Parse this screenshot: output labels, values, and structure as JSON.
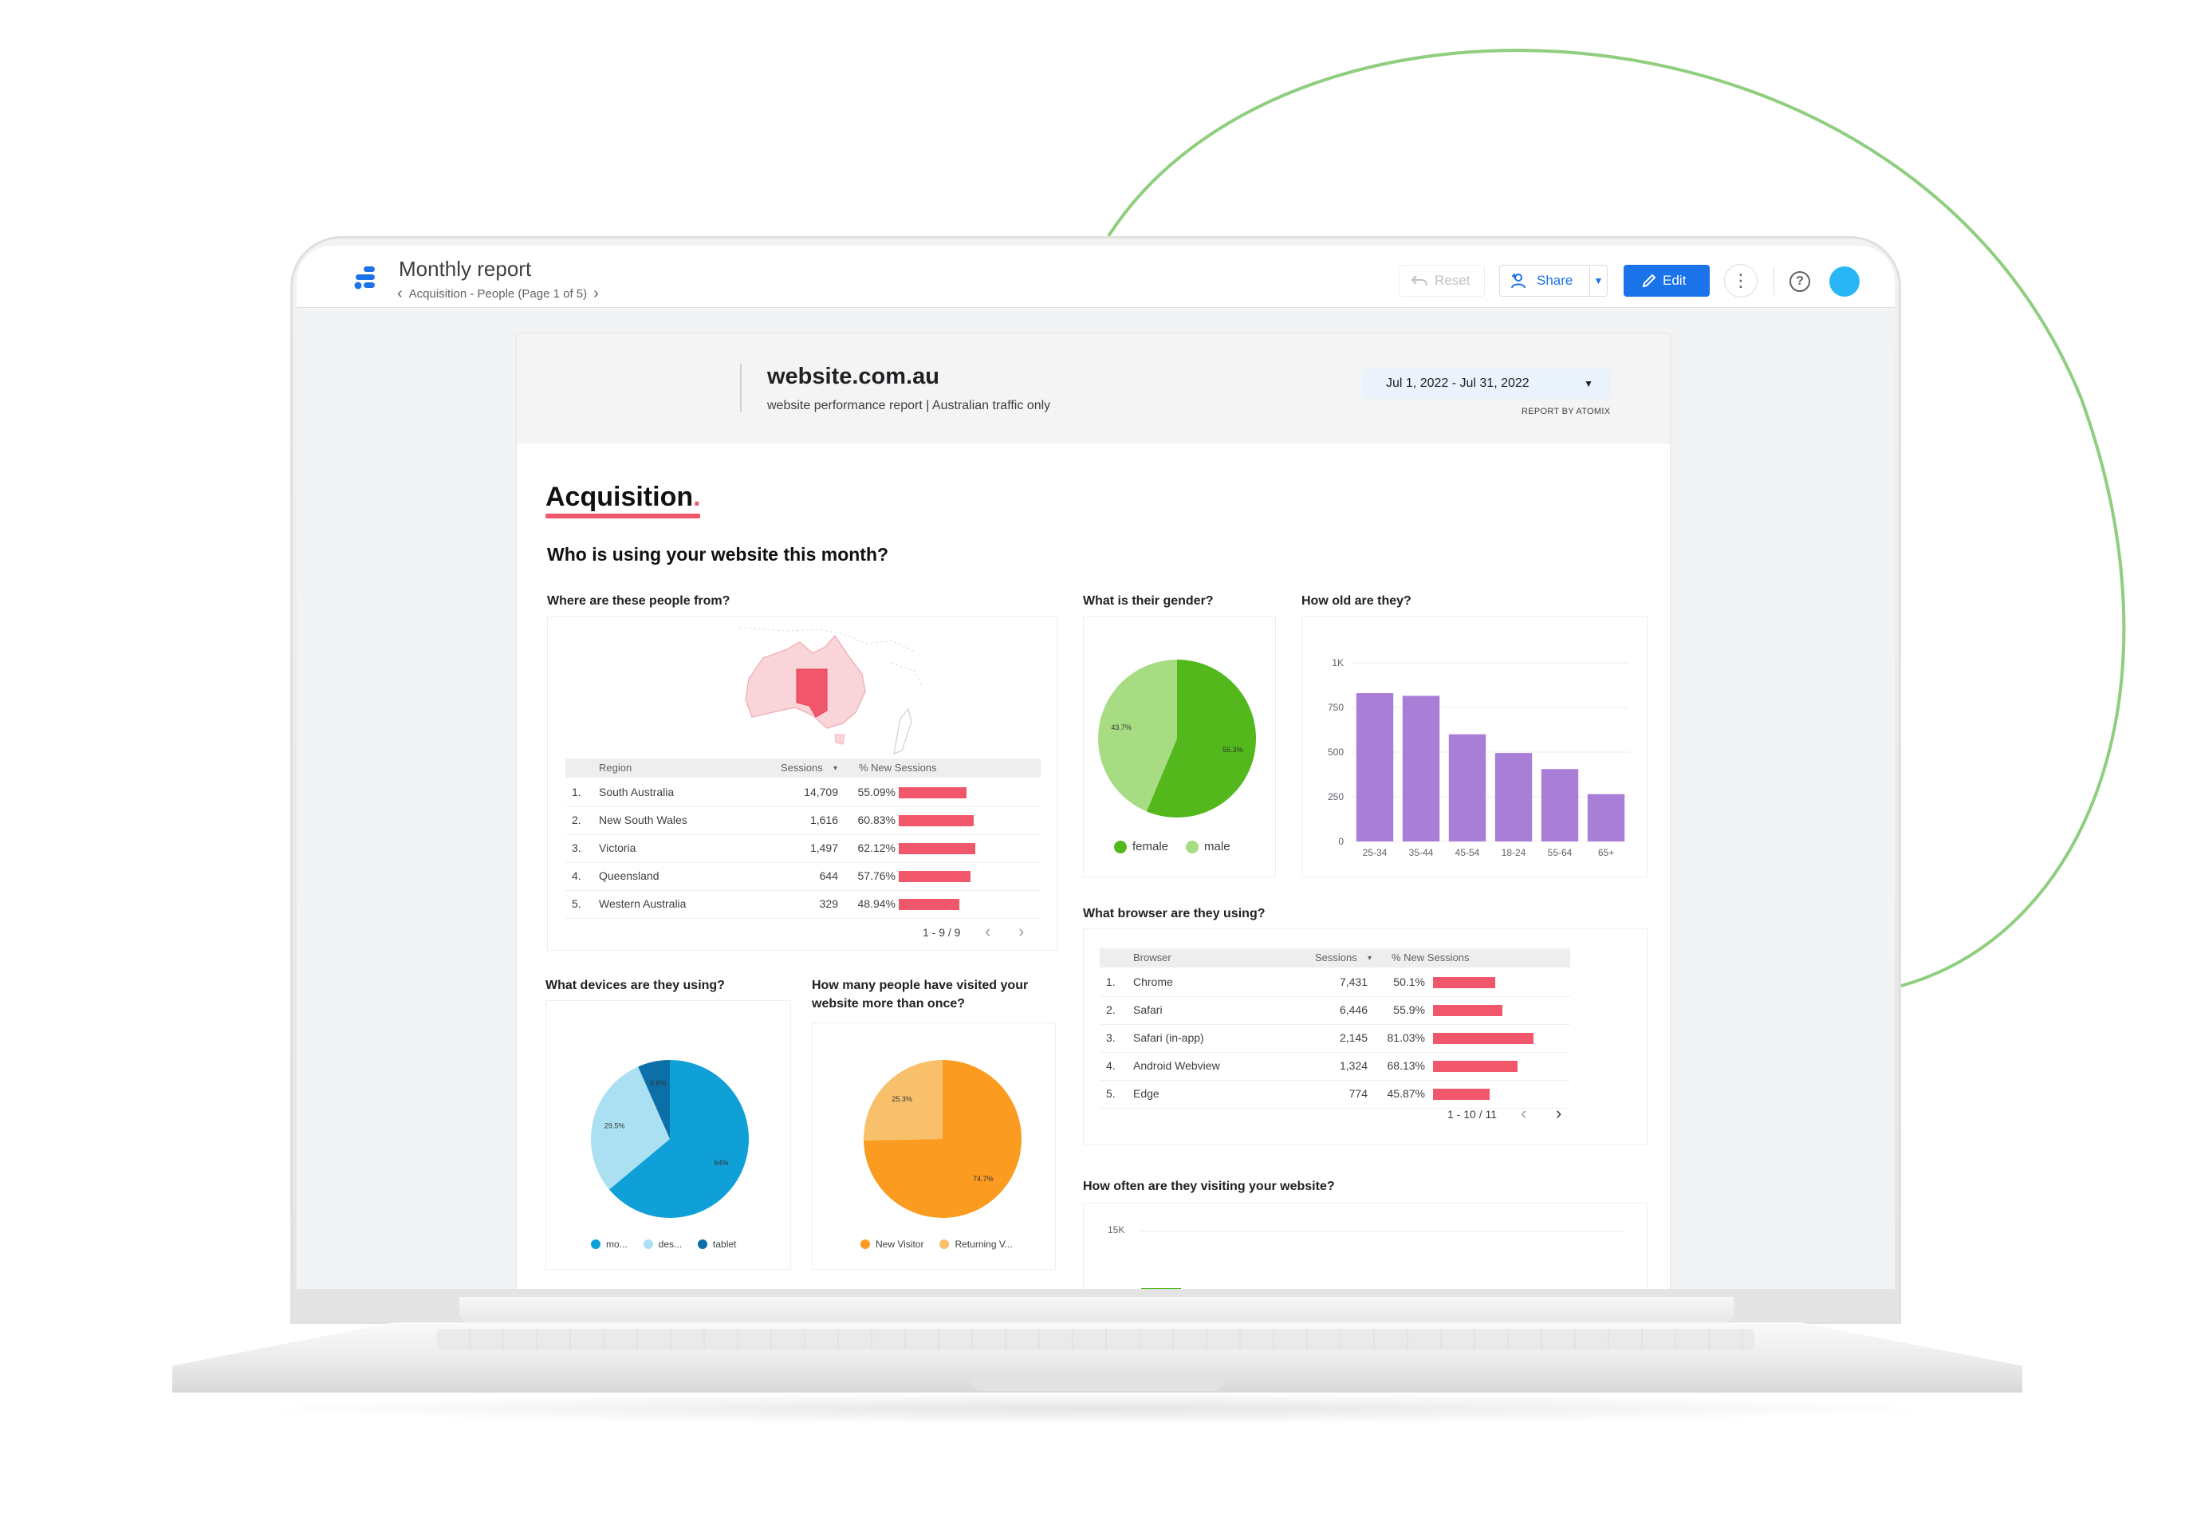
{
  "app": {
    "title": "Monthly report",
    "breadcrumb": "Acquisition - People (Page 1 of 5)",
    "toolbar": {
      "reset": "Reset",
      "share": "Share",
      "edit": "Edit"
    },
    "icons": [
      "report-logo-icon",
      "chevron-left-icon",
      "chevron-right-icon",
      "undo-icon",
      "add-person-icon",
      "caret-down-icon",
      "pencil-icon",
      "more-vert-icon",
      "help-icon",
      "avatar"
    ]
  },
  "report": {
    "site": "website.com.au",
    "subtitle": "website performance report | Australian traffic only",
    "date_range": "Jul 1, 2022 - Jul 31, 2022",
    "byline": "REPORT BY ATOMIX",
    "section": "Acquisition",
    "section_dot": ".",
    "question": "Who is using your website this month?",
    "colors": {
      "accent": "#f0576b",
      "brand_blue": "#1a73e8",
      "purple": "#a97ed6",
      "green_dark": "#52b81c",
      "green_light": "#a8dc82",
      "blue_dark": "#0fa0d8",
      "blue_light": "#abe0f2",
      "blue_navy": "#0c6fa8",
      "orange": "#fb9b20",
      "orange_light": "#f8c06b",
      "arc": "#8fce7f"
    }
  },
  "region": {
    "title": "Where are these people from?",
    "columns": [
      "Region",
      "Sessions",
      "% New Sessions"
    ],
    "sort_indicator": "▾",
    "rows": [
      {
        "n": "1.",
        "name": "South Australia",
        "sessions": "14,709",
        "pct": "55.09%",
        "v": 55.09
      },
      {
        "n": "2.",
        "name": "New South Wales",
        "sessions": "1,616",
        "pct": "60.83%",
        "v": 60.83
      },
      {
        "n": "3.",
        "name": "Victoria",
        "sessions": "1,497",
        "pct": "62.12%",
        "v": 62.12
      },
      {
        "n": "4.",
        "name": "Queensland",
        "sessions": "644",
        "pct": "57.76%",
        "v": 57.76
      },
      {
        "n": "5.",
        "name": "Western Australia",
        "sessions": "329",
        "pct": "48.94%",
        "v": 48.94
      }
    ],
    "pager": "1 - 9 / 9"
  },
  "gender": {
    "title": "What is their gender?",
    "slices": [
      {
        "label": "female",
        "value": 56.3,
        "text": "56.3%",
        "color": "#52b81c"
      },
      {
        "label": "male",
        "value": 43.7,
        "text": "43.7%",
        "color": "#a8dc82"
      }
    ]
  },
  "age": {
    "title": "How old are they?",
    "y_ticks": [
      "1K",
      "750",
      "500",
      "250",
      "0"
    ],
    "y_tick_values": [
      1000,
      750,
      500,
      250,
      0
    ],
    "categories": [
      "25-34",
      "35-44",
      "45-54",
      "18-24",
      "55-64",
      "65+"
    ],
    "values": [
      830,
      815,
      600,
      495,
      405,
      265
    ],
    "ylim": [
      0,
      1000
    ]
  },
  "browser": {
    "title": "What browser are they using?",
    "columns": [
      "Browser",
      "Sessions",
      "% New Sessions"
    ],
    "sort_indicator": "▾",
    "rows": [
      {
        "n": "1.",
        "name": "Chrome",
        "sessions": "7,431",
        "pct": "50.1%",
        "v": 50.1
      },
      {
        "n": "2.",
        "name": "Safari",
        "sessions": "6,446",
        "pct": "55.9%",
        "v": 55.9
      },
      {
        "n": "3.",
        "name": "Safari (in-app)",
        "sessions": "2,145",
        "pct": "81.03%",
        "v": 81.03
      },
      {
        "n": "4.",
        "name": "Android Webview",
        "sessions": "1,324",
        "pct": "68.13%",
        "v": 68.13
      },
      {
        "n": "5.",
        "name": "Edge",
        "sessions": "774",
        "pct": "45.87%",
        "v": 45.87
      }
    ],
    "pager": "1 - 10 / 11"
  },
  "devices": {
    "title": "What devices are they using?",
    "slices": [
      {
        "label": "mo...",
        "value": 64,
        "text": "64%",
        "color": "#0fa0d8"
      },
      {
        "label": "des...",
        "value": 29.5,
        "text": "29.5%",
        "color": "#abe0f2"
      },
      {
        "label": "tablet",
        "value": 6.6,
        "text": "6.6%",
        "color": "#0c6fa8"
      }
    ]
  },
  "visitors": {
    "title_line1": "How many people have visited your",
    "title_line2": "website more than once?",
    "slices": [
      {
        "label": "New Visitor",
        "value": 74.7,
        "text": "74.7%",
        "color": "#fb9b20"
      },
      {
        "label": "Returning V...",
        "value": 25.3,
        "text": "25.3%",
        "color": "#f8c06b"
      }
    ]
  },
  "frequency": {
    "title": "How often are they visiting your website?",
    "y_tick": "15K"
  }
}
